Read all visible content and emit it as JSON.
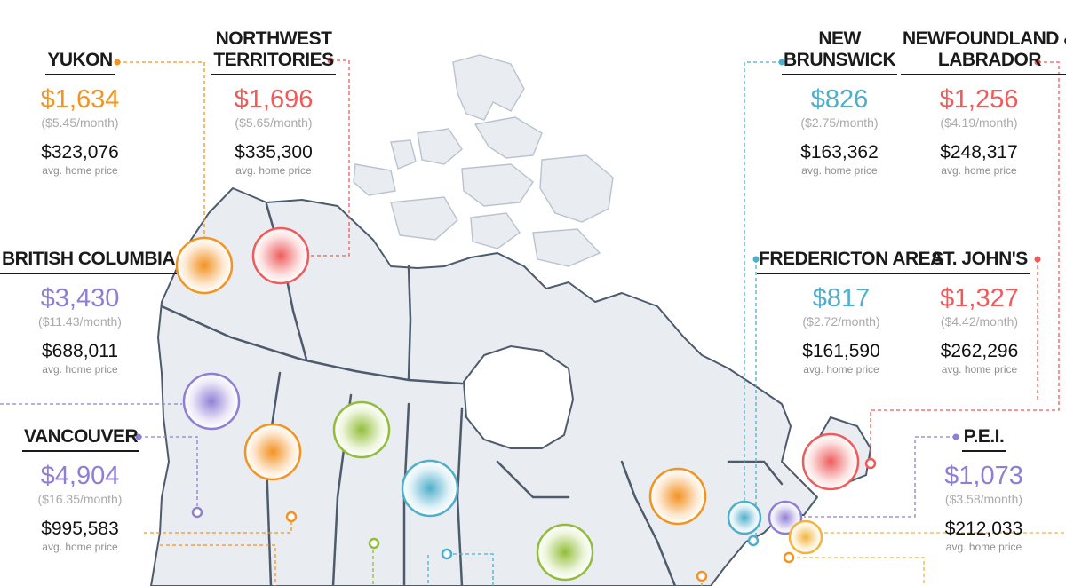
{
  "colors": {
    "orange": "#f39321",
    "red": "#ef5a5a",
    "purple": "#8f7fd4",
    "teal": "#4eaecb",
    "green": "#92bd3a",
    "gold": "#f3b43c",
    "map_fill": "#e9ecf0",
    "map_border": "#4d5b6d"
  },
  "regions": [
    {
      "id": "yukon",
      "name": [
        "YUKON"
      ],
      "price": "$1,634",
      "monthly": "($5.45/month)",
      "home": "$323,076",
      "home_label": "avg. home price",
      "color": "orange"
    },
    {
      "id": "northwest-territories",
      "name": [
        "NORTHWEST",
        "TERRITORIES"
      ],
      "price": "$1,696",
      "monthly": "($5.65/month)",
      "home": "$335,300",
      "home_label": "avg. home price",
      "color": "red"
    },
    {
      "id": "british-columbia",
      "name": [
        "BRITISH COLUMBIA"
      ],
      "price": "$3,430",
      "monthly": "($11.43/month)",
      "home": "$688,011",
      "home_label": "avg. home price",
      "color": "purple"
    },
    {
      "id": "vancouver",
      "name": [
        "VANCOUVER"
      ],
      "price": "$4,904",
      "monthly": "($16.35/month)",
      "home": "$995,583",
      "home_label": "avg. home price",
      "color": "purple"
    },
    {
      "id": "new-brunswick",
      "name": [
        "NEW",
        "BRUNSWICK"
      ],
      "price": "$826",
      "monthly": "($2.75/month)",
      "home": "$163,362",
      "home_label": "avg. home price",
      "color": "teal"
    },
    {
      "id": "newfoundland-labrador",
      "name": [
        "NEWFOUNDLAND &",
        "LABRADOR"
      ],
      "price": "$1,256",
      "monthly": "($4.19/month)",
      "home": "$248,317",
      "home_label": "avg. home price",
      "color": "red"
    },
    {
      "id": "fredericton-area",
      "name": [
        "FREDERICTON AREA"
      ],
      "price": "$817",
      "monthly": "($2.72/month)",
      "home": "$161,590",
      "home_label": "avg. home price",
      "color": "teal"
    },
    {
      "id": "st-johns",
      "name": [
        "ST. JOHN'S"
      ],
      "price": "$1,327",
      "monthly": "($4.42/month)",
      "home": "$262,296",
      "home_label": "avg. home price",
      "color": "red"
    },
    {
      "id": "pei",
      "name": [
        "P.E.I."
      ],
      "price": "$1,073",
      "monthly": "($3.58/month)",
      "home": "$212,033",
      "home_label": "avg. home price",
      "color": "purple"
    }
  ],
  "bubbles": [
    {
      "id": "yukon",
      "color": "orange"
    },
    {
      "id": "nwt",
      "color": "red"
    },
    {
      "id": "bc",
      "color": "purple"
    },
    {
      "id": "alberta",
      "color": "orange"
    },
    {
      "id": "saskatchewan",
      "color": "green"
    },
    {
      "id": "manitoba",
      "color": "teal"
    },
    {
      "id": "ontario",
      "color": "green"
    },
    {
      "id": "quebec",
      "color": "orange"
    },
    {
      "id": "newfoundland",
      "color": "red"
    },
    {
      "id": "new-brunswick",
      "color": "teal"
    },
    {
      "id": "pei",
      "color": "purple"
    },
    {
      "id": "nova-scotia",
      "color": "gold"
    }
  ]
}
